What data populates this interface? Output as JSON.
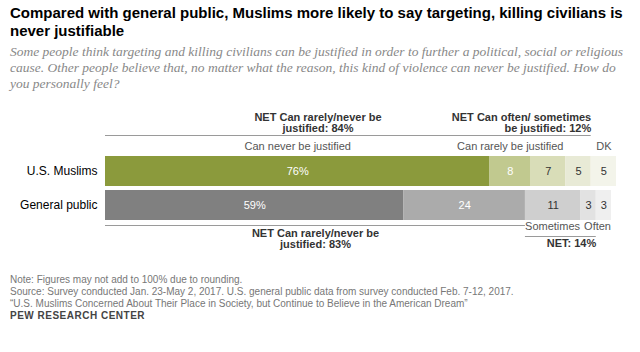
{
  "chart_data": {
    "type": "bar",
    "title": "Compared with general public, Muslims more likely to say targeting, killing civilians is never justifiable",
    "subtitle": "Some people think targeting and killing civilians can be justified in order to further a political, social or religious cause. Other people believe that, no matter what the reason, this kind of violence can never be justified. How do you personally feel?",
    "orientation": "horizontal",
    "stacked": true,
    "data_labels": true,
    "tick_labels": "y",
    "categories": [
      "U.S. Muslims",
      "General public"
    ],
    "series": [
      {
        "name": "Can never be justified",
        "colors": [
          "#8b9a3c",
          "#808080"
        ],
        "values": [
          76,
          59
        ],
        "value_labels": [
          "76%",
          "59%"
        ]
      },
      {
        "name": "Can rarely be justified",
        "colors": [
          "#c1c98f",
          "#ababab"
        ],
        "values": [
          8,
          24
        ]
      },
      {
        "name": "Sometimes",
        "colors": [
          "#d9ddb8",
          "#cfcfcf"
        ],
        "values": [
          7,
          11
        ]
      },
      {
        "name": "Often",
        "colors": [
          "#e8ead6",
          "#e2e2e2"
        ],
        "values": [
          5,
          3
        ]
      },
      {
        "name": "DK",
        "colors": [
          "#f3f4ea",
          "#efefef"
        ],
        "values": [
          5,
          3
        ]
      }
    ],
    "annotations": [
      {
        "text": "NET Can rarely/never be justified: 84%",
        "row": "U.S. Muslims",
        "series": [
          "Can never be justified",
          "Can rarely be justified"
        ]
      },
      {
        "text": "NET Can often/ sometimes be justified: 12%",
        "row": "U.S. Muslims",
        "series": [
          "Sometimes",
          "Often"
        ]
      },
      {
        "text": "NET Can rarely/never be justified: 83%",
        "row": "General public",
        "series": [
          "Can never be justified",
          "Can rarely be justified"
        ]
      },
      {
        "text": "NET: 14%",
        "row": "General public",
        "series": [
          "Sometimes",
          "Often"
        ]
      }
    ],
    "notes": [
      "Note: Figures may not add to 100% due to rounding.",
      "Source: Survey conducted Jan. 23-May 2, 2017. U.S. general public data from survey conducted Feb. 7-12, 2017.",
      "“U.S. Muslims Concerned About Their Place in Society, but Continue to Believe in the American Dream”"
    ],
    "credit": "PEW RESEARCH CENTER"
  }
}
